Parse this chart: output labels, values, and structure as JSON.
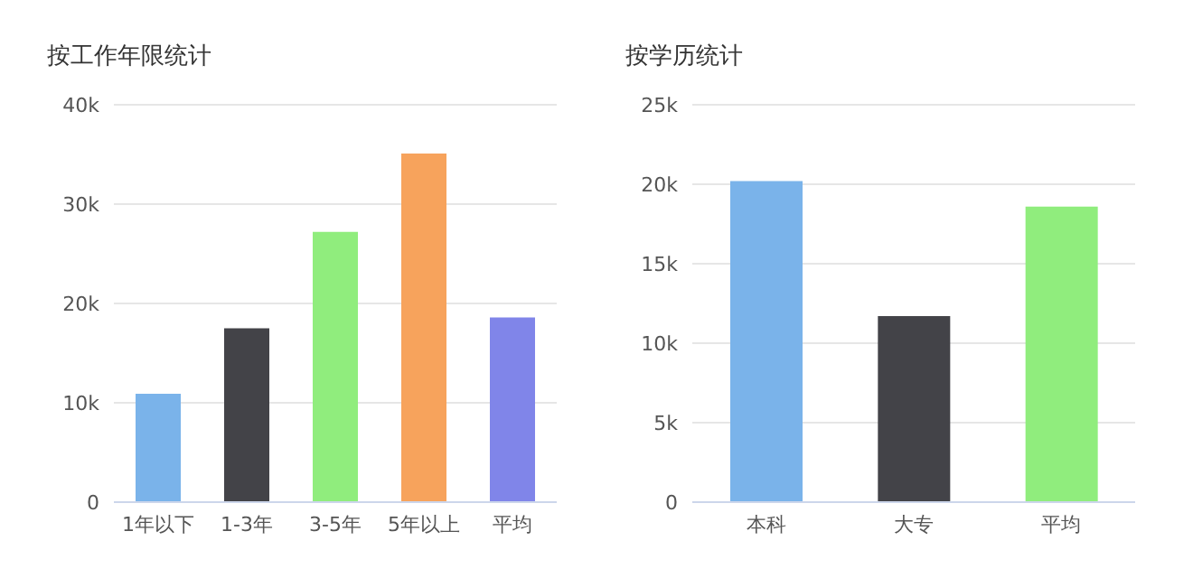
{
  "chart_data": [
    {
      "type": "bar",
      "title": "按工作年限统计",
      "categories": [
        "1年以下",
        "1-3年",
        "3-5年",
        "5年以上",
        "平均"
      ],
      "values": [
        10900,
        17500,
        27200,
        35100,
        18600
      ],
      "colors": [
        "#7ab3ea",
        "#434348",
        "#90ed7d",
        "#f7a35c",
        "#8085e9"
      ],
      "ylim": [
        0,
        40000
      ],
      "yticks": [
        0,
        {
          "value": 10000,
          "label": "10k"
        },
        {
          "value": 20000,
          "label": "20k"
        },
        {
          "value": 30000,
          "label": "30k"
        },
        {
          "value": 40000,
          "label": "40k"
        }
      ],
      "grid": "y",
      "legend": false
    },
    {
      "type": "bar",
      "title": "按学历统计",
      "categories": [
        "本科",
        "大专",
        "平均"
      ],
      "values": [
        20200,
        11700,
        18600
      ],
      "colors": [
        "#7ab3ea",
        "#434348",
        "#90ed7d"
      ],
      "ylim": [
        0,
        25000
      ],
      "yticks": [
        0,
        {
          "value": 5000,
          "label": "5k"
        },
        {
          "value": 10000,
          "label": "10k"
        },
        {
          "value": 15000,
          "label": "15k"
        },
        {
          "value": 20000,
          "label": "20k"
        },
        {
          "value": 25000,
          "label": "25k"
        }
      ],
      "grid": "y",
      "legend": false
    }
  ]
}
